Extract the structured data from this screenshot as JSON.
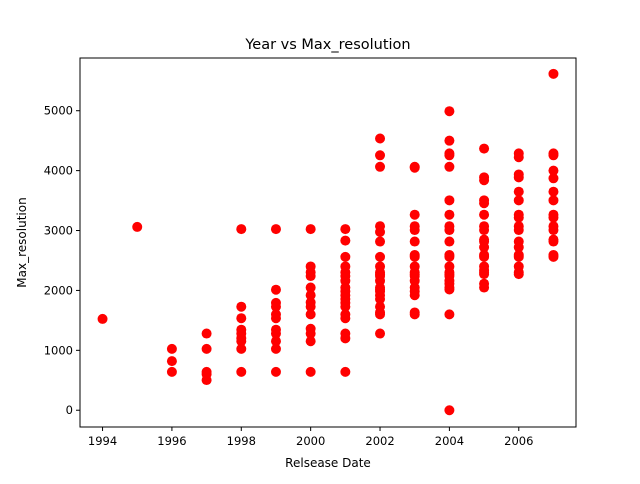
{
  "chart_data": {
    "type": "scatter",
    "title": "Year vs Max_resolution",
    "xlabel": "Relsease Date",
    "ylabel": "Max_resolution",
    "xlim": [
      1993.35,
      2007.65
    ],
    "ylim": [
      -280,
      5880
    ],
    "xticks": [
      1994,
      1996,
      1998,
      2000,
      2002,
      2004,
      2006
    ],
    "yticks": [
      0,
      1000,
      2000,
      3000,
      4000,
      5000
    ],
    "grid": false,
    "legend": "none",
    "marker_color": "#ff0000",
    "series": [
      {
        "points": [
          [
            1994,
            1524
          ],
          [
            1995,
            3060
          ],
          [
            1996,
            1024
          ],
          [
            1996,
            820
          ],
          [
            1996,
            640
          ],
          [
            1997,
            1280
          ],
          [
            1997,
            1024
          ],
          [
            1997,
            640
          ],
          [
            1997,
            600
          ],
          [
            1997,
            504
          ],
          [
            1998,
            3024
          ],
          [
            1998,
            1728
          ],
          [
            1998,
            1536
          ],
          [
            1998,
            1344
          ],
          [
            1998,
            1280
          ],
          [
            1998,
            1200
          ],
          [
            1998,
            1152
          ],
          [
            1998,
            1024
          ],
          [
            1998,
            640
          ],
          [
            1999,
            3024
          ],
          [
            1999,
            2012
          ],
          [
            1999,
            1792
          ],
          [
            1999,
            1728
          ],
          [
            1999,
            1600
          ],
          [
            1999,
            1536
          ],
          [
            1999,
            1344
          ],
          [
            1999,
            1280
          ],
          [
            1999,
            1152
          ],
          [
            1999,
            1024
          ],
          [
            1999,
            640
          ],
          [
            2000,
            3024
          ],
          [
            2000,
            2400
          ],
          [
            2000,
            2304
          ],
          [
            2000,
            2240
          ],
          [
            2000,
            2048
          ],
          [
            2000,
            1920
          ],
          [
            2000,
            1800
          ],
          [
            2000,
            1728
          ],
          [
            2000,
            1600
          ],
          [
            2000,
            1360
          ],
          [
            2000,
            1280
          ],
          [
            2000,
            1152
          ],
          [
            2000,
            640
          ],
          [
            2001,
            3024
          ],
          [
            2001,
            2832
          ],
          [
            2001,
            2560
          ],
          [
            2001,
            2400
          ],
          [
            2001,
            2304
          ],
          [
            2001,
            2240
          ],
          [
            2001,
            2160
          ],
          [
            2001,
            2048
          ],
          [
            2001,
            1984
          ],
          [
            2001,
            1920
          ],
          [
            2001,
            1856
          ],
          [
            2001,
            1792
          ],
          [
            2001,
            1728
          ],
          [
            2001,
            1600
          ],
          [
            2001,
            1536
          ],
          [
            2001,
            1280
          ],
          [
            2001,
            1200
          ],
          [
            2001,
            640
          ],
          [
            2002,
            4536
          ],
          [
            2002,
            4256
          ],
          [
            2002,
            4064
          ],
          [
            2002,
            3072
          ],
          [
            2002,
            2976
          ],
          [
            2002,
            2816
          ],
          [
            2002,
            2560
          ],
          [
            2002,
            2400
          ],
          [
            2002,
            2304
          ],
          [
            2002,
            2272
          ],
          [
            2002,
            2240
          ],
          [
            2002,
            2160
          ],
          [
            2002,
            2048
          ],
          [
            2002,
            2016
          ],
          [
            2002,
            1984
          ],
          [
            2002,
            1920
          ],
          [
            2002,
            1856
          ],
          [
            2002,
            1728
          ],
          [
            2002,
            1632
          ],
          [
            2002,
            1600
          ],
          [
            2002,
            1280
          ],
          [
            2003,
            4064
          ],
          [
            2003,
            4048
          ],
          [
            2003,
            3264
          ],
          [
            2003,
            3072
          ],
          [
            2003,
            3008
          ],
          [
            2003,
            2816
          ],
          [
            2003,
            2592
          ],
          [
            2003,
            2560
          ],
          [
            2003,
            2400
          ],
          [
            2003,
            2304
          ],
          [
            2003,
            2272
          ],
          [
            2003,
            2240
          ],
          [
            2003,
            2160
          ],
          [
            2003,
            2048
          ],
          [
            2003,
            1984
          ],
          [
            2003,
            1920
          ],
          [
            2003,
            1632
          ],
          [
            2003,
            1600
          ],
          [
            2004,
            4992
          ],
          [
            2004,
            4500
          ],
          [
            2004,
            4288
          ],
          [
            2004,
            4256
          ],
          [
            2004,
            4064
          ],
          [
            2004,
            3504
          ],
          [
            2004,
            3264
          ],
          [
            2004,
            3072
          ],
          [
            2004,
            3008
          ],
          [
            2004,
            2816
          ],
          [
            2004,
            2592
          ],
          [
            2004,
            2560
          ],
          [
            2004,
            2400
          ],
          [
            2004,
            2304
          ],
          [
            2004,
            2272
          ],
          [
            2004,
            2240
          ],
          [
            2004,
            2160
          ],
          [
            2004,
            2112
          ],
          [
            2004,
            2048
          ],
          [
            2004,
            2016
          ],
          [
            2004,
            1600
          ],
          [
            2004,
            0
          ],
          [
            2005,
            4368
          ],
          [
            2005,
            3888
          ],
          [
            2005,
            3840
          ],
          [
            2005,
            3504
          ],
          [
            2005,
            3456
          ],
          [
            2005,
            3264
          ],
          [
            2005,
            3072
          ],
          [
            2005,
            3008
          ],
          [
            2005,
            2848
          ],
          [
            2005,
            2816
          ],
          [
            2005,
            2720
          ],
          [
            2005,
            2592
          ],
          [
            2005,
            2560
          ],
          [
            2005,
            2400
          ],
          [
            2005,
            2336
          ],
          [
            2005,
            2304
          ],
          [
            2005,
            2272
          ],
          [
            2005,
            2112
          ],
          [
            2005,
            2048
          ],
          [
            2006,
            4288
          ],
          [
            2006,
            4224
          ],
          [
            2006,
            3936
          ],
          [
            2006,
            3888
          ],
          [
            2006,
            3648
          ],
          [
            2006,
            3504
          ],
          [
            2006,
            3264
          ],
          [
            2006,
            3216
          ],
          [
            2006,
            3072
          ],
          [
            2006,
            3008
          ],
          [
            2006,
            2816
          ],
          [
            2006,
            2720
          ],
          [
            2006,
            2592
          ],
          [
            2006,
            2560
          ],
          [
            2006,
            2400
          ],
          [
            2006,
            2304
          ],
          [
            2006,
            2272
          ],
          [
            2007,
            5616
          ],
          [
            2007,
            4288
          ],
          [
            2007,
            4256
          ],
          [
            2007,
            4000
          ],
          [
            2007,
            3872
          ],
          [
            2007,
            3648
          ],
          [
            2007,
            3504
          ],
          [
            2007,
            3264
          ],
          [
            2007,
            3216
          ],
          [
            2007,
            3072
          ],
          [
            2007,
            3008
          ],
          [
            2007,
            2848
          ],
          [
            2007,
            2816
          ],
          [
            2007,
            2592
          ],
          [
            2007,
            2560
          ]
        ]
      }
    ]
  }
}
